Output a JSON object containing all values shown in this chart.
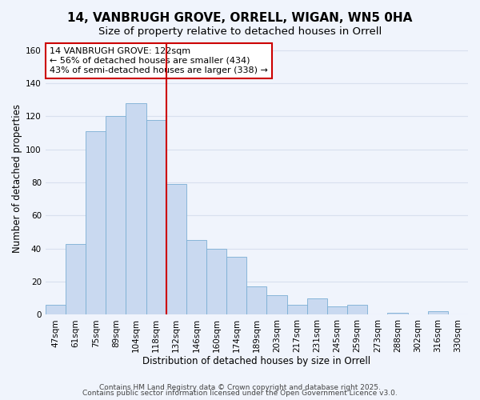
{
  "title": "14, VANBRUGH GROVE, ORRELL, WIGAN, WN5 0HA",
  "subtitle": "Size of property relative to detached houses in Orrell",
  "xlabel": "Distribution of detached houses by size in Orrell",
  "ylabel": "Number of detached properties",
  "bin_labels": [
    "47sqm",
    "61sqm",
    "75sqm",
    "89sqm",
    "104sqm",
    "118sqm",
    "132sqm",
    "146sqm",
    "160sqm",
    "174sqm",
    "189sqm",
    "203sqm",
    "217sqm",
    "231sqm",
    "245sqm",
    "259sqm",
    "273sqm",
    "288sqm",
    "302sqm",
    "316sqm",
    "330sqm"
  ],
  "bar_values": [
    6,
    43,
    111,
    120,
    128,
    118,
    79,
    45,
    40,
    35,
    17,
    12,
    6,
    10,
    5,
    6,
    0,
    1,
    0,
    2,
    0
  ],
  "bar_color": "#c9d9f0",
  "bar_edge_color": "#7bafd4",
  "vline_color": "#cc0000",
  "vline_x_index": 5,
  "annotation_text": "14 VANBRUGH GROVE: 122sqm\n← 56% of detached houses are smaller (434)\n43% of semi-detached houses are larger (338) →",
  "ylim": [
    0,
    165
  ],
  "yticks": [
    0,
    20,
    40,
    60,
    80,
    100,
    120,
    140,
    160
  ],
  "footer1": "Contains HM Land Registry data © Crown copyright and database right 2025.",
  "footer2": "Contains public sector information licensed under the Open Government Licence v3.0.",
  "bg_color": "#f0f4fc",
  "plot_bg_color": "#f0f4fc",
  "grid_color": "#d8e0ee",
  "title_fontsize": 11,
  "subtitle_fontsize": 9.5,
  "label_fontsize": 8.5,
  "tick_fontsize": 7.5,
  "annotation_fontsize": 8,
  "footer_fontsize": 6.5
}
